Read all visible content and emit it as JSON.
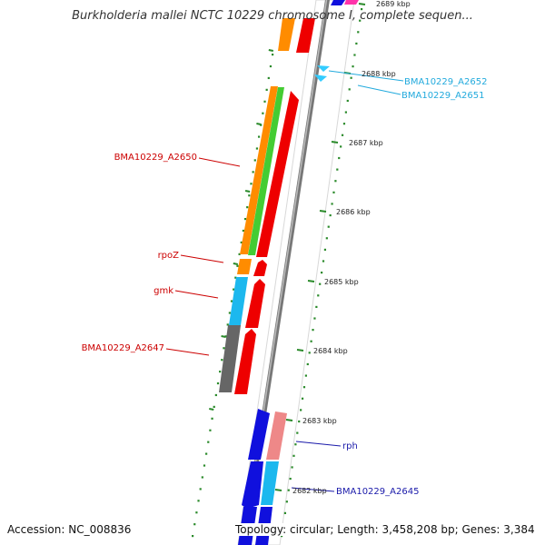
{
  "title": "Burkholderia mallei NCTC 10229 chromosome I, complete sequen...",
  "footer": {
    "accession": "Accession: NC_008836",
    "summary": "Topology: circular; Length: 3,458,208 bp; Genes: 3,384"
  },
  "ticks": [
    "2689 kbp",
    "2688 kbp",
    "2687 kbp",
    "2686 kbp",
    "2685 kbp",
    "2684 kbp",
    "2683 kbp",
    "2682 kbp"
  ],
  "labels": {
    "a2652": "BMA10229_A2652",
    "a2651": "BMA10229_A2651",
    "a2650": "BMA10229_A2650",
    "rpoZ": "rpoZ",
    "gmk": "gmk",
    "a2647": "BMA10229_A2647",
    "rph": "rph",
    "a2645": "BMA10229_A2645"
  },
  "colors": {
    "red_labels": "#cc0000",
    "cyan_labels": "#22aadd",
    "blue_labels": "#1a1aaa",
    "gc_skew_green": "#2a8a2a",
    "backbone": "#888888"
  }
}
